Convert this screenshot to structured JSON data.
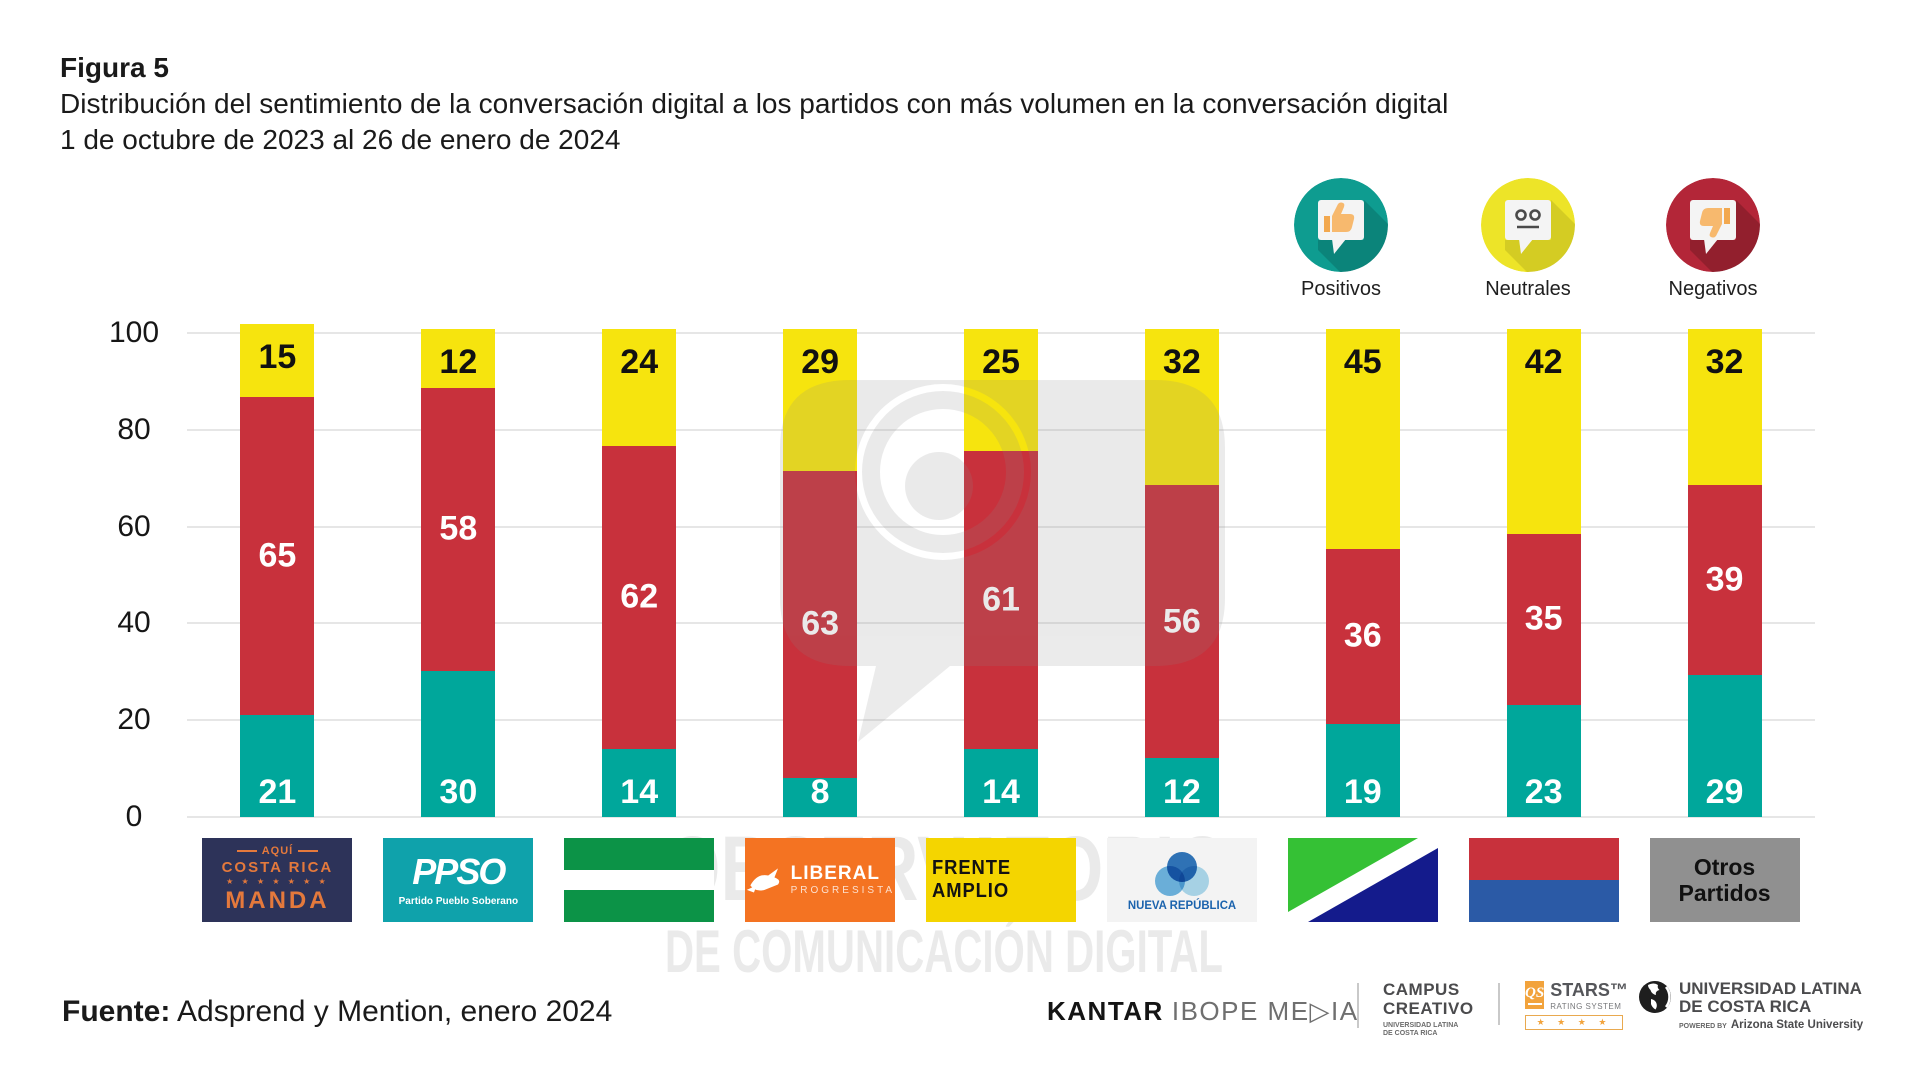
{
  "figure": {
    "label": "Figura 5",
    "title": "Distribución del sentimiento de la conversación digital a los partidos con más volumen en la conversación digital",
    "subtitle": "1 de octubre de 2023 al 26 de enero de 2024"
  },
  "legend": [
    {
      "label": "Positivos",
      "color": "#0E9C90"
    },
    {
      "label": "Neutrales",
      "color": "#EDE428"
    },
    {
      "label": "Negativos",
      "color": "#B32638"
    }
  ],
  "watermark": {
    "line1": "OBSERVATORIO",
    "line2": "DE COMUNICACIÓN DIGITAL"
  },
  "chart_data": {
    "type": "bar",
    "stacked": true,
    "categories": [
      "Aquí Costa Rica Manda",
      "PPSO Partido Pueblo Soberano",
      "Liberación Nacional (bandera verde-blanco-verde)",
      "Liberal Progresista",
      "Frente Amplio",
      "Nueva República",
      "Bandera diagonal verde-blanco-azul",
      "Bandera roja-azul",
      "Otros Partidos"
    ],
    "series": [
      {
        "name": "Positivos",
        "color": "#00A79B",
        "label_color": "#FFFFFF",
        "label_pos": "bottom",
        "values": [
          21,
          30,
          14,
          8,
          14,
          12,
          19,
          23,
          29
        ]
      },
      {
        "name": "Negativos",
        "color": "#C8313C",
        "label_color": "#FFFFFF",
        "label_pos": "center",
        "values": [
          65,
          58,
          62,
          63,
          61,
          56,
          36,
          35,
          39
        ]
      },
      {
        "name": "Neutrales",
        "color": "#F6E40E",
        "label_color": "#111111",
        "label_pos": "top",
        "values": [
          15,
          12,
          24,
          29,
          25,
          32,
          45,
          42,
          32
        ]
      }
    ],
    "ylim": [
      0,
      100
    ],
    "yticks": [
      0,
      20,
      40,
      60,
      80,
      100
    ],
    "grid": true,
    "legend_position": "top-right",
    "xlabel": "",
    "ylabel": ""
  },
  "logos": [
    {
      "top": "AQUÍ",
      "name": "COSTA RICA",
      "stars": "★ ★ ★ ★ ★ ★ ★",
      "main": "MANDA"
    },
    {
      "abbr": "PPSO",
      "sub": "Partido Pueblo Soberano"
    },
    {},
    {
      "main": "LIBERAL",
      "sub": "PROGRESISTA"
    },
    {
      "main": "FRENTE AMPLIO"
    },
    {
      "main": "NUEVA REPÚBLICA"
    },
    {},
    {},
    {
      "line1": "Otros",
      "line2": "Partidos"
    }
  ],
  "footer": {
    "source_label": "Fuente:",
    "source_text": " Adsprend y Mention, enero 2024",
    "kantar_brand": "KANTAR",
    "kantar_suffix": "IBOPE ME▷IA",
    "campus_line1": "CAMPUS",
    "campus_line2": "CREATIVO",
    "campus_sub1": "UNIVERSIDAD LATINA",
    "campus_sub2": "DE COSTA RICA",
    "qs_mark": "QS",
    "qs_title": "STARS™",
    "qs_sub": "RATING SYSTEM",
    "qs_stars": "★ ★ ★ ★",
    "uni_line1": "UNIVERSIDAD LATINA",
    "uni_line2": "DE COSTA RICA",
    "uni_pow1": "POWERED BY",
    "uni_pow2": "Arizona State University"
  }
}
